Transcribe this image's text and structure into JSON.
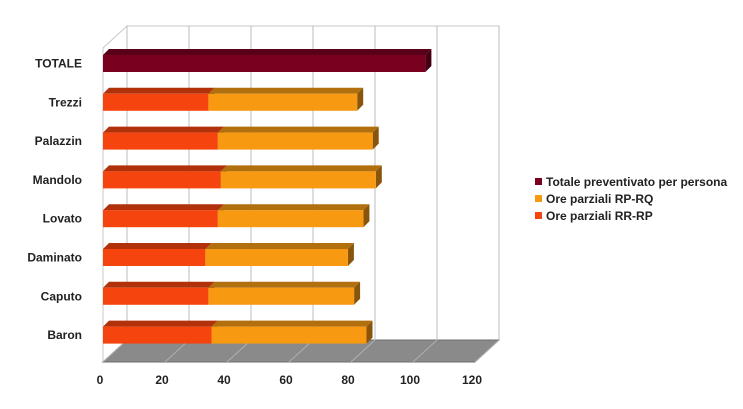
{
  "chart_data": {
    "type": "bar",
    "orientation": "horizontal",
    "stacked": true,
    "three_d": true,
    "categories": [
      "TOTALE",
      "Trezzi",
      "Palazzin",
      "Mandolo",
      "Lovato",
      "Daminato",
      "Caputo",
      "Baron"
    ],
    "series": [
      {
        "name": "Ore parziali RR-RP",
        "color": "#f5440e",
        "values": [
          0,
          34,
          37,
          38,
          37,
          33,
          34,
          35
        ]
      },
      {
        "name": "Ore parziali RP-RQ",
        "color": "#f79a12",
        "values": [
          0,
          48,
          50,
          50,
          47,
          46,
          47,
          50
        ]
      },
      {
        "name": "Totale preventivato per persona",
        "color": "#7a0020",
        "values": [
          104,
          0,
          0,
          0,
          0,
          0,
          0,
          0
        ]
      }
    ],
    "xlim": [
      0,
      120
    ],
    "xticks": [
      0,
      20,
      40,
      60,
      80,
      100,
      120
    ],
    "grid": true,
    "legend": "right"
  }
}
